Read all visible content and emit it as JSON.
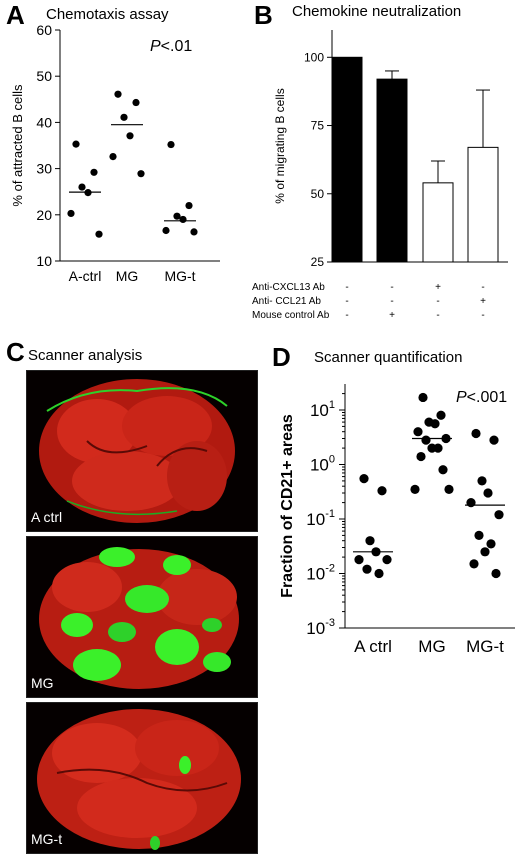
{
  "panels": {
    "a": {
      "letter": "A",
      "title": "Chemotaxis assay"
    },
    "b": {
      "letter": "B",
      "title": "Chemokine neutralization"
    },
    "c": {
      "letter": "C",
      "title": "Scanner analysis"
    },
    "d": {
      "letter": "D",
      "title": "Scanner quantification"
    }
  },
  "micrographs": [
    {
      "label": "A ctrl",
      "green_fraction": 0.02
    },
    {
      "label": "MG",
      "green_fraction": 0.35
    },
    {
      "label": "MG-t",
      "green_fraction": 0.05
    }
  ],
  "chart_data": [
    {
      "id": "A",
      "type": "scatter",
      "title": "Chemotaxis assay",
      "ylabel": "% of attracted B cells",
      "categories": [
        "A-ctrl",
        "MG",
        "MG-t"
      ],
      "ylim": [
        10,
        60
      ],
      "yticks": [
        10,
        20,
        30,
        40,
        50,
        60
      ],
      "points": [
        [
          35.3,
          29.2,
          26.0,
          24.8,
          20.3,
          15.8
        ],
        [
          46.1,
          44.3,
          41.1,
          37.1,
          32.6,
          28.9
        ],
        [
          35.2,
          22.0,
          19.7,
          19.0,
          16.6,
          16.3
        ]
      ],
      "medians": [
        24.9,
        39.5,
        18.7
      ],
      "annotation": "P<.01",
      "grid": false
    },
    {
      "id": "B",
      "type": "bar",
      "title": "Chemokine neutralization",
      "ylabel": "% of migrating B cells",
      "ylim": [
        25,
        110
      ],
      "yticks": [
        25,
        50,
        75,
        100
      ],
      "values": [
        100,
        92,
        54,
        67
      ],
      "errors": [
        0,
        3,
        8,
        21
      ],
      "fills": [
        "#000000",
        "#000000",
        "#ffffff",
        "#ffffff"
      ],
      "conditions": [
        {
          "label": "Anti-CXCL13 Ab",
          "signs": [
            "-",
            "-",
            "+",
            "-"
          ]
        },
        {
          "label": "Anti- CCL21 Ab",
          "signs": [
            "-",
            "-",
            "-",
            "+"
          ]
        },
        {
          "label": "Mouse control  Ab",
          "signs": [
            "-",
            "+",
            "-",
            "-"
          ]
        }
      ],
      "grid": false
    },
    {
      "id": "D",
      "type": "scatter",
      "title": "Scanner quantification",
      "ylabel": "Fraction of CD21+ areas",
      "categories": [
        "A ctrl",
        "MG",
        "MG-t"
      ],
      "yscale": "log",
      "ylim": [
        0.001,
        30
      ],
      "yticks": [
        {
          "base": "10",
          "exp": "1",
          "value": 10
        },
        {
          "base": "10",
          "exp": "0",
          "value": 1
        },
        {
          "base": "10",
          "exp": "-1",
          "value": 0.1
        },
        {
          "base": "10",
          "exp": "-2",
          "value": 0.01
        },
        {
          "base": "10",
          "exp": "-3",
          "value": 0.001
        }
      ],
      "points": [
        [
          0.55,
          0.33,
          0.04,
          0.025,
          0.018,
          0.018,
          0.012,
          0.01
        ],
        [
          17,
          8.0,
          6.0,
          5.6,
          4.0,
          3.0,
          2.8,
          2.0,
          2.0,
          1.4,
          0.8,
          0.35,
          0.35
        ],
        [
          3.7,
          2.8,
          0.5,
          0.3,
          0.2,
          0.12,
          0.05,
          0.035,
          0.025,
          0.015,
          0.01
        ]
      ],
      "medians": [
        0.025,
        3.0,
        0.18
      ],
      "annotation": "P<.001",
      "grid": false
    }
  ]
}
